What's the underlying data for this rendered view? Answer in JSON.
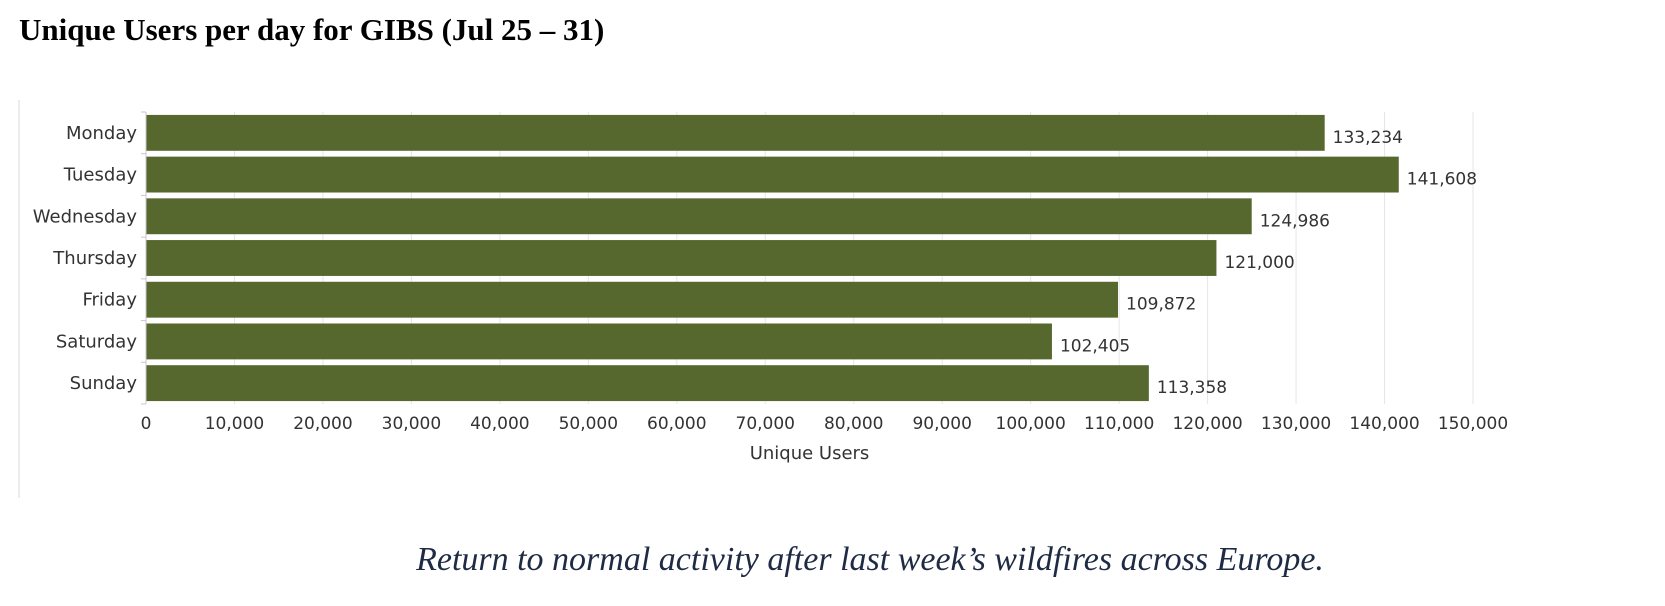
{
  "title": "Unique Users per day for GIBS (Jul 25 – 31)",
  "caption": "Return to normal activity after last week’s wildfires across Europe.",
  "chart_data": {
    "type": "bar",
    "orientation": "horizontal",
    "categories": [
      "Monday",
      "Tuesday",
      "Wednesday",
      "Thursday",
      "Friday",
      "Saturday",
      "Sunday"
    ],
    "values": [
      133234,
      141608,
      124986,
      121000,
      109872,
      102405,
      113358
    ],
    "data_labels": [
      "133,234",
      "141,608",
      "124,986",
      "121,000",
      "109,872",
      "102,405",
      "113,358"
    ],
    "xlabel": "Unique Users",
    "ylabel": "",
    "xlim": [
      0,
      150000
    ],
    "x_ticks": [
      0,
      10000,
      20000,
      30000,
      40000,
      50000,
      60000,
      70000,
      80000,
      90000,
      100000,
      110000,
      120000,
      130000,
      140000,
      150000
    ],
    "x_tick_labels": [
      "0",
      "10,000",
      "20,000",
      "30,000",
      "40,000",
      "50,000",
      "60,000",
      "70,000",
      "80,000",
      "90,000",
      "100,000",
      "110,000",
      "120,000",
      "130,000",
      "140,000",
      "150,000"
    ],
    "grid": true,
    "bar_color": "#57682f",
    "legend": "none"
  }
}
